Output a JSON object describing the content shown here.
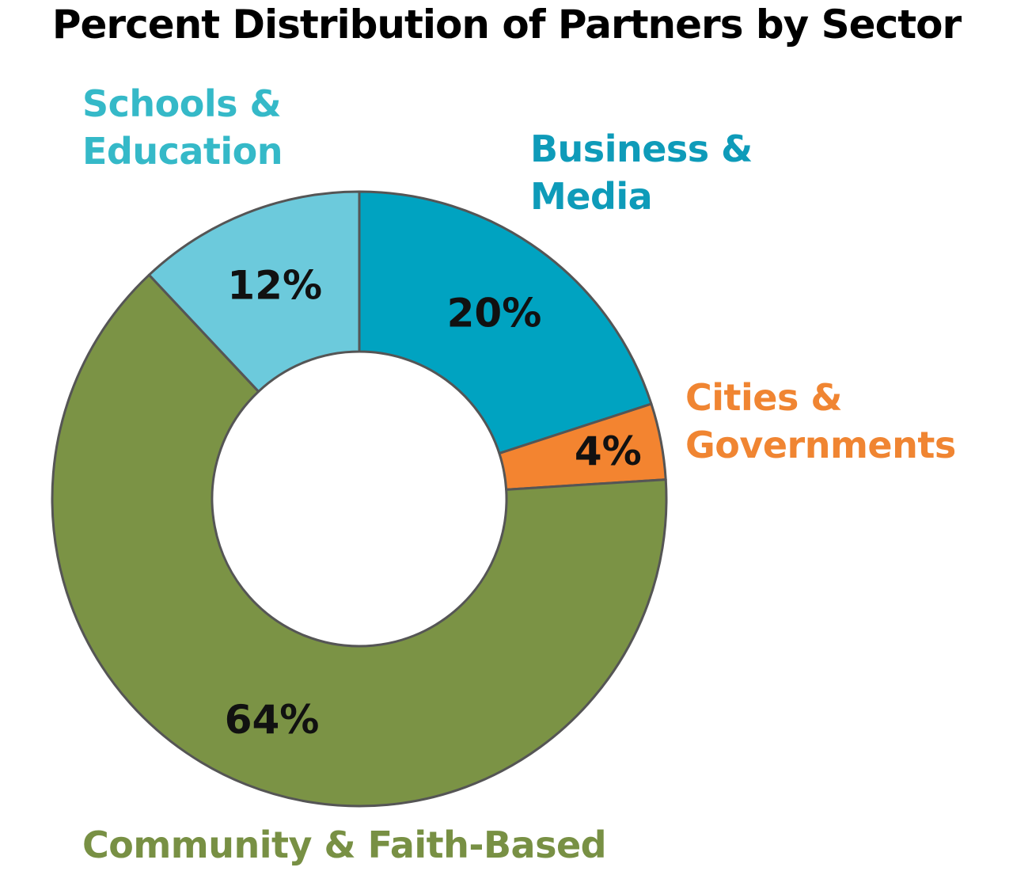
{
  "chart_data": {
    "type": "pie",
    "title": "Percent Distribution of Partners by Sector",
    "slices": [
      {
        "label_lines": [
          "Business &",
          "Media"
        ],
        "value": 20,
        "value_label": "20%",
        "color": "#00A3C1",
        "label_color": "#0E9BB9"
      },
      {
        "label_lines": [
          "Cities &",
          "Governments"
        ],
        "value": 4,
        "value_label": "4%",
        "color": "#F38430",
        "label_color": "#F08532"
      },
      {
        "label_lines": [
          "Community & Faith-Based"
        ],
        "value": 64,
        "value_label": "64%",
        "color": "#7B9345",
        "label_color": "#789044"
      },
      {
        "label_lines": [
          "Schools &",
          "Education"
        ],
        "value": 12,
        "value_label": "12%",
        "color": "#6CCADC",
        "label_color": "#35B9C8"
      }
    ]
  }
}
